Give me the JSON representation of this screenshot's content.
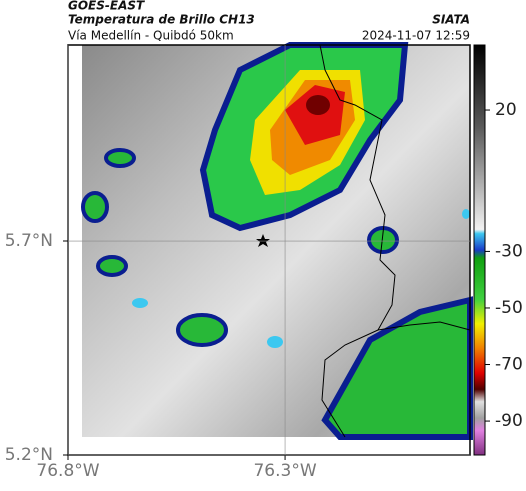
{
  "header": {
    "source": "GOES-EAST",
    "title": "Temperatura de Brillo CH13",
    "subtitle": "Vía Medellín - Quibdó 50km",
    "agency": "SIATA",
    "datetime": "2024-11-07 12:59"
  },
  "map": {
    "lon_range": [
      -76.8,
      -75.874
    ],
    "lat_range": [
      5.2,
      6.158
    ],
    "lon_ticks": [
      {
        "value": -76.8,
        "label": "76.8°W"
      },
      {
        "value": -76.3,
        "label": "76.3°W"
      }
    ],
    "lat_ticks": [
      {
        "value": 5.7,
        "label": "5.7°N"
      },
      {
        "value": 5.2,
        "label": "5.2°N"
      }
    ]
  },
  "colorbar": {
    "range": [
      -102,
      43
    ],
    "ticks": [
      20,
      -30,
      -50,
      -70,
      -90
    ]
  }
}
